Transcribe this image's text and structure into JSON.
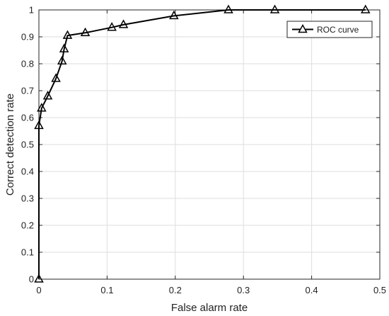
{
  "chart_data": {
    "type": "line",
    "title": "",
    "xlabel": "False alarm rate",
    "ylabel": "Correct detection rate",
    "xlim": [
      0,
      0.5
    ],
    "ylim": [
      0,
      1
    ],
    "xticks": [
      0,
      0.1,
      0.2,
      0.3,
      0.4,
      0.5
    ],
    "yticks": [
      0,
      0.1,
      0.2,
      0.3,
      0.4,
      0.5,
      0.6,
      0.7,
      0.8,
      0.9,
      1
    ],
    "xtick_labels": [
      "0",
      "0.1",
      "0.2",
      "0.3",
      "0.4",
      "0.5"
    ],
    "ytick_labels": [
      "0",
      "0.1",
      "0.2",
      "0.3",
      "0.4",
      "0.5",
      "0.6",
      "0.7",
      "0.8",
      "0.9",
      "1"
    ],
    "grid": true,
    "legend": {
      "placement": "top-right"
    },
    "series": [
      {
        "name": "ROC curve",
        "marker": "triangle",
        "color": "#000000",
        "x": [
          0,
          0,
          0.004,
          0.013,
          0.025,
          0.034,
          0.037,
          0.042,
          0.068,
          0.107,
          0.124,
          0.198,
          0.278,
          0.346,
          0.479
        ],
        "y": [
          0,
          0.57,
          0.635,
          0.68,
          0.745,
          0.81,
          0.855,
          0.905,
          0.915,
          0.935,
          0.945,
          0.978,
          1,
          1,
          1
        ]
      }
    ]
  }
}
